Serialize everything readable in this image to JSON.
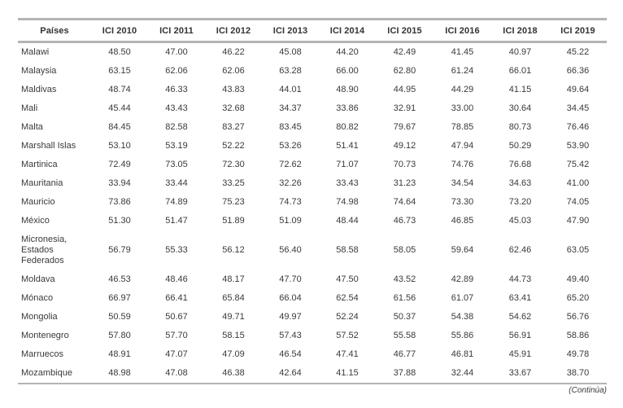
{
  "table": {
    "columns": [
      "Países",
      "ICI 2010",
      "ICI 2011",
      "ICI 2012",
      "ICI 2013",
      "ICI 2014",
      "ICI 2015",
      "ICI 2016",
      "ICI 2018",
      "ICI 2019"
    ],
    "rows": [
      {
        "country": "Malawi",
        "values": [
          "48.50",
          "47.00",
          "46.22",
          "45.08",
          "44.20",
          "42.49",
          "41.45",
          "40.97",
          "45.22"
        ]
      },
      {
        "country": "Malaysia",
        "values": [
          "63.15",
          "62.06",
          "62.06",
          "63.28",
          "66.00",
          "62.80",
          "61.24",
          "66.01",
          "66.36"
        ]
      },
      {
        "country": "Maldivas",
        "values": [
          "48.74",
          "46.33",
          "43.83",
          "44.01",
          "48.90",
          "44.95",
          "44.29",
          "41.15",
          "49.64"
        ]
      },
      {
        "country": "Mali",
        "values": [
          "45.44",
          "43.43",
          "32.68",
          "34.37",
          "33.86",
          "32.91",
          "33.00",
          "30.64",
          "34.45"
        ]
      },
      {
        "country": "Malta",
        "values": [
          "84.45",
          "82.58",
          "83.27",
          "83.45",
          "80.82",
          "79.67",
          "78.85",
          "80.73",
          "76.46"
        ]
      },
      {
        "country": "Marshall Islas",
        "values": [
          "53.10",
          "53.19",
          "52.22",
          "53.26",
          "51.41",
          "49.12",
          "47.94",
          "50.29",
          "53.90"
        ]
      },
      {
        "country": "Martinica",
        "values": [
          "72.49",
          "73.05",
          "72.30",
          "72.62",
          "71.07",
          "70.73",
          "74.76",
          "76.68",
          "75.42"
        ]
      },
      {
        "country": "Mauritania",
        "values": [
          "33.94",
          "33.44",
          "33.25",
          "32.26",
          "33.43",
          "31.23",
          "34.54",
          "34.63",
          "41.00"
        ]
      },
      {
        "country": "Mauricio",
        "values": [
          "73.86",
          "74.89",
          "75.23",
          "74.73",
          "74.98",
          "74.64",
          "73.30",
          "73.20",
          "74.05"
        ]
      },
      {
        "country": "México",
        "values": [
          "51.30",
          "51.47",
          "51.89",
          "51.09",
          "48.44",
          "46.73",
          "46.85",
          "45.03",
          "47.90"
        ]
      },
      {
        "country": "Micronesia, Estados Federados",
        "values": [
          "56.79",
          "55.33",
          "56.12",
          "56.40",
          "58.58",
          "58.05",
          "59.64",
          "62.46",
          "63.05"
        ]
      },
      {
        "country": "Moldava",
        "values": [
          "46.53",
          "48.46",
          "48.17",
          "47.70",
          "47.50",
          "43.52",
          "42.89",
          "44.73",
          "49.40"
        ]
      },
      {
        "country": "Mónaco",
        "values": [
          "66.97",
          "66.41",
          "65.84",
          "66.04",
          "62.54",
          "61.56",
          "61.07",
          "63.41",
          "65.20"
        ]
      },
      {
        "country": "Mongolia",
        "values": [
          "50.59",
          "50.67",
          "49.71",
          "49.97",
          "52.24",
          "50.37",
          "54.38",
          "54.62",
          "56.76"
        ]
      },
      {
        "country": "Montenegro",
        "values": [
          "57.80",
          "57.70",
          "58.15",
          "57.43",
          "57.52",
          "55.58",
          "55.86",
          "56.91",
          "58.86"
        ]
      },
      {
        "country": "Marruecos",
        "values": [
          "48.91",
          "47.07",
          "47.09",
          "46.54",
          "47.41",
          "46.77",
          "46.81",
          "45.91",
          "49.78"
        ]
      },
      {
        "country": "Mozambique",
        "values": [
          "48.98",
          "47.08",
          "46.38",
          "42.64",
          "41.15",
          "37.88",
          "32.44",
          "33.67",
          "38.70"
        ]
      }
    ],
    "footer_note": "(Continúa)"
  }
}
